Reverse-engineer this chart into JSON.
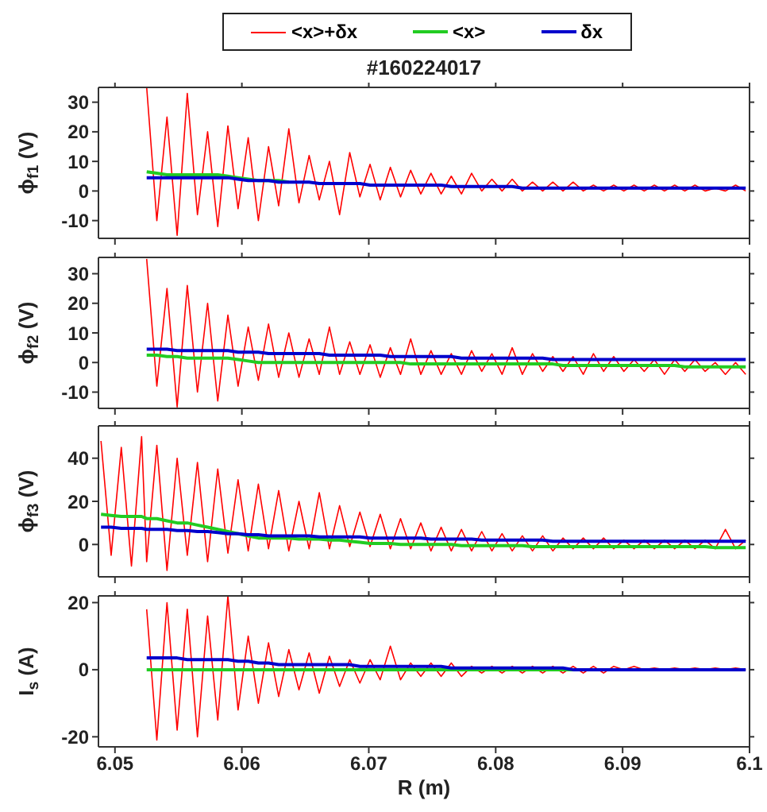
{
  "chart_data": [
    {
      "type": "line",
      "title": "#160224017",
      "ylabel": "ϕ$_{f1}$ (V)",
      "legend": "top",
      "tick_labels": "y",
      "xlim": [
        6.0487,
        6.1
      ],
      "xticks": [
        6.05,
        6.06,
        6.07,
        6.08,
        6.09,
        6.1
      ],
      "ylim": [
        -16,
        35
      ],
      "yticks": [
        -10,
        0,
        10,
        20,
        30
      ],
      "x": [
        6.0525,
        6.0533,
        6.0541,
        6.0549,
        6.0557,
        6.0565,
        6.0573,
        6.0581,
        6.0589,
        6.0597,
        6.0605,
        6.0613,
        6.0621,
        6.0629,
        6.0637,
        6.0645,
        6.0653,
        6.0661,
        6.0669,
        6.0677,
        6.0685,
        6.0693,
        6.0701,
        6.0709,
        6.0717,
        6.0725,
        6.0733,
        6.0741,
        6.0749,
        6.0757,
        6.0765,
        6.0773,
        6.0781,
        6.0789,
        6.0797,
        6.0805,
        6.0813,
        6.0821,
        6.0829,
        6.0837,
        6.0845,
        6.0853,
        6.0861,
        6.0869,
        6.0877,
        6.0885,
        6.0893,
        6.0901,
        6.0909,
        6.0917,
        6.0925,
        6.0933,
        6.0941,
        6.0949,
        6.0957,
        6.0965,
        6.0973,
        6.0981,
        6.0989,
        6.0997
      ],
      "series": [
        {
          "name": "<x>+δx",
          "color": "#ff0000",
          "values": [
            35,
            -10,
            25,
            -15,
            33,
            -8,
            20,
            -12,
            22,
            -6,
            18,
            -10,
            15,
            -5,
            21,
            -4,
            12,
            -3,
            10,
            -8,
            13,
            -2,
            9,
            -3,
            8,
            -2,
            7,
            -1,
            6,
            -1,
            5,
            -1,
            6,
            0,
            4,
            0,
            4,
            0,
            3,
            0,
            3,
            0,
            3,
            0,
            2,
            0,
            2,
            0,
            2,
            0,
            2,
            0,
            2,
            0,
            2,
            0,
            1,
            0,
            2,
            0
          ]
        },
        {
          "name": "<x>",
          "color": "#22cc22",
          "values": [
            6.5,
            6,
            5.5,
            5.5,
            5.5,
            5.5,
            5.5,
            5.5,
            5,
            4.5,
            4,
            3.5,
            3.5,
            3.5,
            3,
            null,
            null,
            null,
            null,
            null,
            null,
            null,
            null,
            null,
            null,
            null,
            null,
            null,
            null,
            null,
            null,
            null,
            null,
            null,
            null,
            null,
            null,
            null,
            null,
            null,
            null,
            null,
            null,
            null,
            null,
            null,
            null,
            null,
            null,
            null,
            null,
            null,
            null,
            null,
            null,
            null,
            null,
            null,
            null,
            null
          ]
        },
        {
          "name": "δx",
          "color": "#0000cc",
          "values": [
            4.5,
            4.5,
            4.5,
            4.5,
            4.5,
            4.5,
            4.5,
            4.5,
            4.5,
            4,
            3.5,
            3.5,
            3.5,
            3,
            3,
            3,
            3,
            2.5,
            2.5,
            2.5,
            2.5,
            2.5,
            2,
            2,
            2,
            2,
            2,
            2,
            2,
            2,
            1.5,
            1.5,
            1.5,
            1.5,
            1.5,
            1.5,
            1.5,
            1,
            1,
            1,
            1,
            1,
            1,
            1,
            1,
            1,
            1,
            1,
            1,
            1,
            1,
            1,
            1,
            1,
            1,
            1,
            1,
            1,
            1,
            1
          ]
        }
      ]
    },
    {
      "type": "line",
      "ylabel": "ϕ$_{f2}$ (V)",
      "tick_labels": "y",
      "xlim": [
        6.0487,
        6.1
      ],
      "xticks": [
        6.05,
        6.06,
        6.07,
        6.08,
        6.09,
        6.1
      ],
      "ylim": [
        -15.5,
        35.5
      ],
      "yticks": [
        -10,
        0,
        10,
        20,
        30
      ],
      "x": [
        6.0525,
        6.0533,
        6.0541,
        6.0549,
        6.0557,
        6.0565,
        6.0573,
        6.0581,
        6.0589,
        6.0597,
        6.0605,
        6.0613,
        6.0621,
        6.0629,
        6.0637,
        6.0645,
        6.0653,
        6.0661,
        6.0669,
        6.0677,
        6.0685,
        6.0693,
        6.0701,
        6.0709,
        6.0717,
        6.0725,
        6.0733,
        6.0741,
        6.0749,
        6.0757,
        6.0765,
        6.0773,
        6.0781,
        6.0789,
        6.0797,
        6.0805,
        6.0813,
        6.0821,
        6.0829,
        6.0837,
        6.0845,
        6.0853,
        6.0861,
        6.0869,
        6.0877,
        6.0885,
        6.0893,
        6.0901,
        6.0909,
        6.0917,
        6.0925,
        6.0933,
        6.0941,
        6.0949,
        6.0957,
        6.0965,
        6.0973,
        6.0981,
        6.0989,
        6.0997
      ],
      "series": [
        {
          "color": "#ff0000",
          "values": [
            35,
            -8,
            25,
            -15,
            26,
            -10,
            20,
            -13,
            16,
            -8,
            12,
            -6,
            13,
            -5,
            10,
            -5,
            8,
            -4,
            12,
            -4,
            7,
            -4,
            6,
            -5,
            5,
            -4,
            8,
            -4,
            4,
            -4,
            3,
            -4,
            4,
            -3,
            3,
            -4,
            5,
            -4,
            3,
            -3,
            2,
            -3,
            2,
            -4,
            3,
            -3,
            2,
            -3,
            1,
            -3,
            1,
            -4,
            1,
            -3,
            1,
            -3,
            0,
            -4,
            0,
            -4
          ]
        },
        {
          "color": "#22cc22",
          "values": [
            2.5,
            2.5,
            2,
            2,
            1.5,
            1.5,
            1.5,
            1.5,
            1.5,
            1,
            0.5,
            0,
            0,
            0,
            0,
            0,
            0,
            0,
            0,
            0,
            0,
            0,
            0,
            0,
            0,
            0,
            -0.5,
            -0.5,
            -0.5,
            -0.5,
            -0.5,
            -0.5,
            -0.5,
            -0.5,
            -0.5,
            -0.5,
            -0.5,
            -0.5,
            -0.5,
            -0.5,
            -0.5,
            -1,
            -1,
            -1,
            -1,
            -1,
            -1,
            -1,
            -1,
            -1,
            -1,
            -1,
            -1,
            -1.5,
            -1.5,
            -1.5,
            -1.5,
            -1.5,
            -1.5,
            -1.5
          ]
        },
        {
          "color": "#0000cc",
          "values": [
            4.5,
            4.5,
            4.5,
            4,
            4,
            4,
            4,
            4,
            4,
            3.5,
            3.5,
            3.5,
            3,
            3,
            3,
            3,
            3,
            3,
            2.5,
            2.5,
            2.5,
            2.5,
            2.5,
            2.5,
            2,
            2,
            2,
            2,
            2,
            2,
            2,
            1.5,
            1.5,
            1.5,
            1.5,
            1.5,
            1.5,
            1.5,
            1.5,
            1.5,
            1,
            1,
            1,
            1,
            1,
            1,
            1,
            1,
            1,
            1,
            1,
            1,
            1,
            1,
            1,
            1,
            1,
            1,
            1,
            1
          ]
        }
      ]
    },
    {
      "type": "line",
      "ylabel": "ϕ$_{f3}$ (V)",
      "tick_labels": "y",
      "xlim": [
        6.0487,
        6.1
      ],
      "xticks": [
        6.05,
        6.06,
        6.07,
        6.08,
        6.09,
        6.1
      ],
      "ylim": [
        -15,
        55
      ],
      "yticks": [
        0,
        20,
        40
      ],
      "x": [
        6.0489,
        6.0497,
        6.0505,
        6.0513,
        6.0521,
        6.0525,
        6.0533,
        6.0541,
        6.0549,
        6.0557,
        6.0565,
        6.0573,
        6.0581,
        6.0589,
        6.0597,
        6.0605,
        6.0613,
        6.0621,
        6.0629,
        6.0637,
        6.0645,
        6.0653,
        6.0661,
        6.0669,
        6.0677,
        6.0685,
        6.0693,
        6.0701,
        6.0709,
        6.0717,
        6.0725,
        6.0733,
        6.0741,
        6.0749,
        6.0757,
        6.0765,
        6.0773,
        6.0781,
        6.0789,
        6.0797,
        6.0805,
        6.0813,
        6.0821,
        6.0829,
        6.0837,
        6.0845,
        6.0853,
        6.0861,
        6.0869,
        6.0877,
        6.0885,
        6.0893,
        6.0901,
        6.0909,
        6.0917,
        6.0925,
        6.0933,
        6.0941,
        6.0949,
        6.0957,
        6.0965,
        6.0973,
        6.0981,
        6.0989,
        6.0997
      ],
      "series": [
        {
          "color": "#ff0000",
          "values": [
            48,
            -5,
            45,
            -10,
            50,
            -8,
            46,
            -12,
            40,
            -5,
            38,
            -8,
            35,
            -4,
            30,
            -3,
            28,
            -2,
            25,
            -3,
            20,
            -2,
            24,
            -2,
            18,
            -1,
            15,
            -1,
            14,
            -2,
            12,
            -2,
            10,
            -3,
            8,
            -3,
            7,
            -3,
            6,
            -3,
            5,
            -3,
            4,
            -3,
            4,
            -3,
            3,
            -2,
            3,
            -2,
            3,
            -2,
            2,
            -2,
            2,
            -2,
            2,
            -2,
            2,
            -2,
            2,
            -2,
            7,
            -2,
            2
          ]
        },
        {
          "color": "#22cc22",
          "values": [
            14,
            13.5,
            13,
            13,
            13,
            12,
            12,
            11,
            10,
            10,
            9,
            8,
            7,
            6,
            5,
            4,
            3,
            3,
            3,
            3,
            2.5,
            2.5,
            2.5,
            2,
            2,
            1.5,
            1,
            0.5,
            0.5,
            0.5,
            0,
            0,
            0,
            0,
            0,
            0,
            -0.5,
            -0.5,
            -0.5,
            -0.5,
            -0.5,
            -0.5,
            -0.5,
            -1,
            -1,
            -1,
            -1,
            -1,
            -1,
            -1,
            -1,
            -1,
            -1,
            -1,
            -1,
            -1,
            -1,
            -1,
            -1,
            -1,
            -1,
            -1.5,
            -1.5,
            -1.5,
            -1.5
          ]
        },
        {
          "color": "#0000cc",
          "values": [
            8,
            8,
            7.5,
            7.5,
            7.5,
            7,
            7,
            7,
            6.5,
            6.5,
            6,
            6,
            5.5,
            5,
            5,
            4.5,
            4.5,
            4,
            4,
            4,
            4,
            4,
            3.5,
            3.5,
            3.5,
            3.5,
            3.5,
            3,
            3,
            3,
            3,
            3,
            3,
            2.5,
            2.5,
            2.5,
            2.5,
            2.5,
            2,
            2,
            2,
            2,
            2,
            2,
            2,
            1.5,
            1.5,
            1.5,
            1.5,
            1.5,
            1.5,
            1.5,
            1.5,
            1.5,
            1.5,
            1.5,
            1.5,
            1.5,
            1.5,
            1.5,
            1.5,
            1.5,
            1.5,
            1.5,
            1.5
          ]
        }
      ]
    },
    {
      "type": "line",
      "ylabel": "I$_{s}$ (A)",
      "xlabel": "R (m)",
      "xlim": [
        6.0487,
        6.1
      ],
      "xticks": [
        6.05,
        6.06,
        6.07,
        6.08,
        6.09,
        6.1
      ],
      "ylim": [
        -23,
        22
      ],
      "yticks": [
        -20,
        0,
        20
      ],
      "x": [
        6.0525,
        6.0533,
        6.0541,
        6.0549,
        6.0557,
        6.0565,
        6.0573,
        6.0581,
        6.0589,
        6.0597,
        6.0605,
        6.0613,
        6.0621,
        6.0629,
        6.0637,
        6.0645,
        6.0653,
        6.0661,
        6.0669,
        6.0677,
        6.0685,
        6.0693,
        6.0701,
        6.0709,
        6.0717,
        6.0725,
        6.0733,
        6.0741,
        6.0749,
        6.0757,
        6.0765,
        6.0773,
        6.0781,
        6.0789,
        6.0797,
        6.0805,
        6.0813,
        6.0821,
        6.0829,
        6.0837,
        6.0845,
        6.0853,
        6.0861,
        6.0869,
        6.0877,
        6.0885,
        6.0893,
        6.0901,
        6.0909,
        6.0917,
        6.0925,
        6.0933,
        6.0941,
        6.0949,
        6.0957,
        6.0965,
        6.0973,
        6.0981,
        6.0989,
        6.0997
      ],
      "series": [
        {
          "color": "#ff0000",
          "values": [
            18,
            -21,
            20,
            -18,
            18,
            -20,
            16,
            -15,
            22,
            -12,
            10,
            -10,
            8,
            -8,
            6,
            -6,
            5,
            -7,
            4,
            -5,
            3,
            -4,
            3,
            -3,
            7,
            -3,
            2,
            -2,
            2,
            -2,
            2,
            -2,
            1,
            -1,
            1,
            -1,
            1,
            -1,
            1,
            -1,
            1,
            -1,
            1,
            -1,
            1,
            -1,
            1,
            0,
            1,
            0,
            0.5,
            0,
            0.5,
            0,
            0.5,
            0,
            0.5,
            0,
            0.5,
            0
          ]
        },
        {
          "color": "#22cc22",
          "values": [
            0,
            0,
            0,
            0,
            0,
            0,
            0,
            0,
            0,
            0,
            0,
            0,
            0,
            0,
            0,
            0,
            0,
            0,
            0,
            0,
            0,
            0,
            0,
            0,
            0,
            0,
            0,
            0,
            0,
            0,
            0,
            0,
            0,
            0,
            0,
            0,
            0,
            0,
            0,
            0,
            0,
            0,
            0,
            0,
            null,
            null,
            null,
            null,
            null,
            null,
            null,
            null,
            null,
            null,
            null,
            null,
            null,
            null,
            null,
            null
          ]
        },
        {
          "color": "#0000cc",
          "values": [
            3.5,
            3.5,
            3.5,
            3.5,
            3,
            3,
            3,
            3,
            3,
            2.5,
            2.5,
            2,
            2,
            1.5,
            1.5,
            1.5,
            1.5,
            1.5,
            1.5,
            1.5,
            1.5,
            1,
            1,
            1,
            1,
            1,
            1,
            1,
            1,
            1,
            0.5,
            0.5,
            0.5,
            0.5,
            0.5,
            0.5,
            0.5,
            0.5,
            0.5,
            0.5,
            0.5,
            0.5,
            0,
            0,
            0,
            0,
            0,
            0,
            0,
            0,
            0,
            0,
            0,
            0,
            0,
            0,
            0,
            0,
            0,
            0
          ]
        }
      ]
    }
  ]
}
